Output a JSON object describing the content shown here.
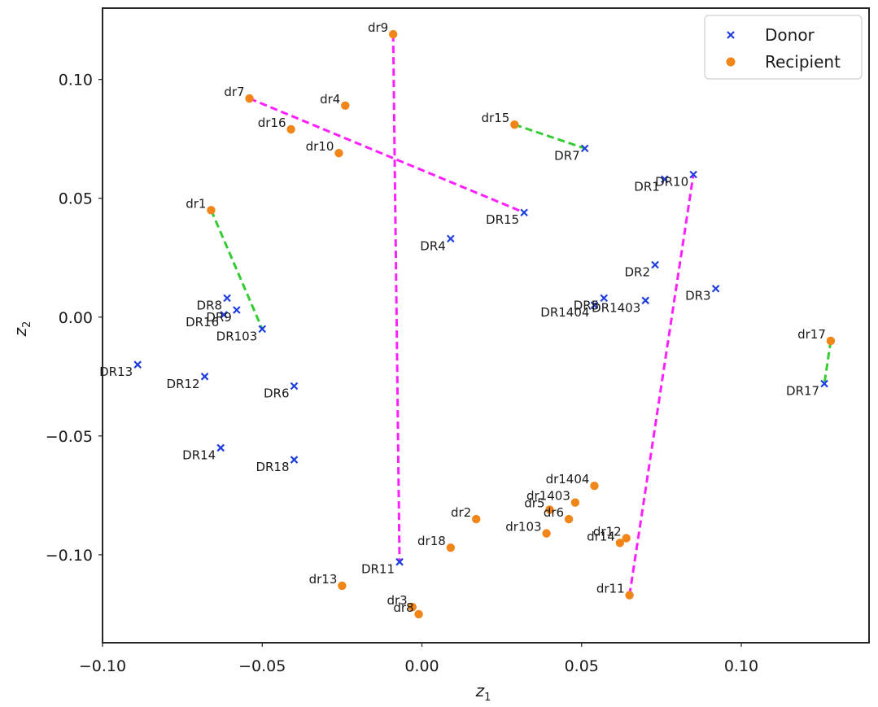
{
  "chart_data": {
    "type": "scatter",
    "title": "",
    "xlabel": "z",
    "xlabel_sub": "1",
    "ylabel": "z",
    "ylabel_sub": "2",
    "xlim": [
      -0.1,
      0.14
    ],
    "ylim": [
      -0.137,
      0.13
    ],
    "grid": false,
    "legend_position": "top-right",
    "x_ticks": [
      {
        "value": -0.1,
        "label": "−0.10"
      },
      {
        "value": -0.05,
        "label": "−0.05"
      },
      {
        "value": 0.0,
        "label": "0.00"
      },
      {
        "value": 0.05,
        "label": "0.05"
      },
      {
        "value": 0.1,
        "label": "0.10"
      }
    ],
    "y_ticks": [
      {
        "value": 0.1,
        "label": "0.10"
      },
      {
        "value": 0.05,
        "label": "0.05"
      },
      {
        "value": 0.0,
        "label": "0.00"
      },
      {
        "value": -0.05,
        "label": "−0.05"
      },
      {
        "value": -0.1,
        "label": "−0.10"
      }
    ],
    "series": [
      {
        "name": "Donor",
        "marker": "x",
        "color": "#1f3ee0",
        "points": [
          {
            "label": "DR1",
            "x": 0.076,
            "y": 0.058
          },
          {
            "label": "DR10",
            "x": 0.085,
            "y": 0.06
          },
          {
            "label": "DR7",
            "x": 0.051,
            "y": 0.071
          },
          {
            "label": "DR15",
            "x": 0.032,
            "y": 0.044
          },
          {
            "label": "DR4",
            "x": 0.009,
            "y": 0.033
          },
          {
            "label": "DR2",
            "x": 0.073,
            "y": 0.022
          },
          {
            "label": "DR3",
            "x": 0.092,
            "y": 0.012
          },
          {
            "label": "DR5",
            "x": 0.057,
            "y": 0.008
          },
          {
            "label": "DR1404",
            "x": 0.054,
            "y": 0.005
          },
          {
            "label": "DR1403",
            "x": 0.07,
            "y": 0.007
          },
          {
            "label": "DR8",
            "x": -0.061,
            "y": 0.008
          },
          {
            "label": "DR9",
            "x": -0.058,
            "y": 0.003
          },
          {
            "label": "DR16",
            "x": -0.062,
            "y": 0.001
          },
          {
            "label": "DR103",
            "x": -0.05,
            "y": -0.005
          },
          {
            "label": "DR13",
            "x": -0.089,
            "y": -0.02
          },
          {
            "label": "DR12",
            "x": -0.068,
            "y": -0.025
          },
          {
            "label": "DR6",
            "x": -0.04,
            "y": -0.029
          },
          {
            "label": "DR14",
            "x": -0.063,
            "y": -0.055
          },
          {
            "label": "DR18",
            "x": -0.04,
            "y": -0.06
          },
          {
            "label": "DR11",
            "x": -0.007,
            "y": -0.103
          },
          {
            "label": "DR17",
            "x": 0.126,
            "y": -0.028
          }
        ]
      },
      {
        "name": "Recipient",
        "marker": "o",
        "color": "#f28518",
        "points": [
          {
            "label": "dr9",
            "x": -0.009,
            "y": 0.119
          },
          {
            "label": "dr7",
            "x": -0.054,
            "y": 0.092
          },
          {
            "label": "dr4",
            "x": -0.024,
            "y": 0.089
          },
          {
            "label": "dr16",
            "x": -0.041,
            "y": 0.079
          },
          {
            "label": "dr10",
            "x": -0.026,
            "y": 0.069
          },
          {
            "label": "dr15",
            "x": 0.029,
            "y": 0.081
          },
          {
            "label": "dr1",
            "x": -0.066,
            "y": 0.045
          },
          {
            "label": "dr17",
            "x": 0.128,
            "y": -0.01
          },
          {
            "label": "dr1404",
            "x": 0.054,
            "y": -0.071
          },
          {
            "label": "dr1403",
            "x": 0.048,
            "y": -0.078
          },
          {
            "label": "dr5",
            "x": 0.04,
            "y": -0.081
          },
          {
            "label": "dr6",
            "x": 0.046,
            "y": -0.085
          },
          {
            "label": "dr2",
            "x": 0.017,
            "y": -0.085
          },
          {
            "label": "dr103",
            "x": 0.039,
            "y": -0.091
          },
          {
            "label": "dr12",
            "x": 0.064,
            "y": -0.093
          },
          {
            "label": "dr14",
            "x": 0.062,
            "y": -0.095
          },
          {
            "label": "dr18",
            "x": 0.009,
            "y": -0.097
          },
          {
            "label": "dr11",
            "x": 0.065,
            "y": -0.117
          },
          {
            "label": "dr13",
            "x": -0.025,
            "y": -0.113
          },
          {
            "label": "dr3",
            "x": -0.003,
            "y": -0.122
          },
          {
            "label": "dr8",
            "x": -0.001,
            "y": -0.125
          }
        ]
      }
    ],
    "pairs": [
      {
        "from": "dr9",
        "to": "DR11",
        "color": "#ff1fff"
      },
      {
        "from": "dr7",
        "to": "DR15",
        "color": "#ff1fff"
      },
      {
        "from": "dr11",
        "to": "DR10",
        "color": "#ff1fff"
      },
      {
        "from": "dr15",
        "to": "DR7",
        "color": "#33cc33"
      },
      {
        "from": "dr1",
        "to": "DR103",
        "color": "#33cc33"
      },
      {
        "from": "dr17",
        "to": "DR17",
        "color": "#33cc33"
      }
    ]
  }
}
